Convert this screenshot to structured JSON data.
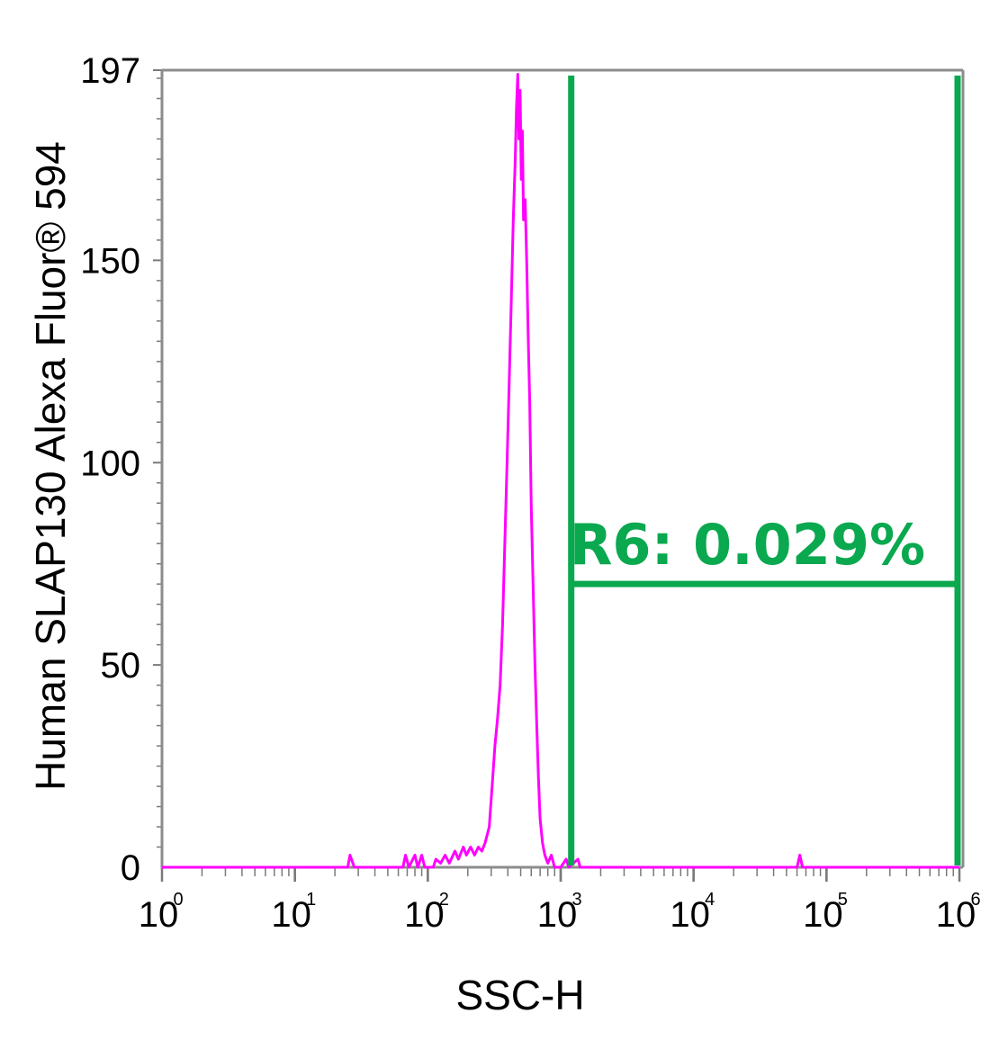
{
  "chart_data": {
    "type": "histogram",
    "xlabel": "SSC-H",
    "ylabel": "Human SLAP130 Alexa Fluor® 594",
    "x_scale": "log",
    "xlim": [
      1,
      1000000
    ],
    "ylim": [
      0,
      197
    ],
    "y_ticks": [
      "0",
      "50",
      "100",
      "150",
      "197"
    ],
    "x_ticks": [
      {
        "base": "10",
        "exp": "0"
      },
      {
        "base": "10",
        "exp": "1"
      },
      {
        "base": "10",
        "exp": "2"
      },
      {
        "base": "10",
        "exp": "3"
      },
      {
        "base": "10",
        "exp": "4"
      },
      {
        "base": "10",
        "exp": "5"
      },
      {
        "base": "10",
        "exp": "6"
      }
    ],
    "series": [
      {
        "color": "#ff00ff",
        "points": [
          [
            1,
            0
          ],
          [
            25,
            0
          ],
          [
            26,
            3
          ],
          [
            28,
            0
          ],
          [
            65,
            0
          ],
          [
            68,
            3
          ],
          [
            72,
            0
          ],
          [
            80,
            3
          ],
          [
            84,
            0
          ],
          [
            90,
            3
          ],
          [
            95,
            0
          ],
          [
            110,
            0
          ],
          [
            115,
            2
          ],
          [
            125,
            1
          ],
          [
            135,
            3
          ],
          [
            145,
            1
          ],
          [
            160,
            4
          ],
          [
            170,
            2
          ],
          [
            185,
            5
          ],
          [
            195,
            3
          ],
          [
            210,
            5
          ],
          [
            225,
            3
          ],
          [
            240,
            5
          ],
          [
            255,
            4
          ],
          [
            270,
            6
          ],
          [
            290,
            10
          ],
          [
            305,
            20
          ],
          [
            320,
            30
          ],
          [
            335,
            37
          ],
          [
            350,
            45
          ],
          [
            365,
            60
          ],
          [
            380,
            80
          ],
          [
            395,
            100
          ],
          [
            410,
            120
          ],
          [
            425,
            140
          ],
          [
            440,
            160
          ],
          [
            455,
            175
          ],
          [
            465,
            188
          ],
          [
            475,
            196
          ],
          [
            485,
            180
          ],
          [
            495,
            192
          ],
          [
            505,
            170
          ],
          [
            515,
            182
          ],
          [
            525,
            160
          ],
          [
            540,
            165
          ],
          [
            555,
            150
          ],
          [
            570,
            130
          ],
          [
            585,
            115
          ],
          [
            600,
            90
          ],
          [
            620,
            70
          ],
          [
            640,
            50
          ],
          [
            660,
            35
          ],
          [
            680,
            22
          ],
          [
            700,
            12
          ],
          [
            730,
            6
          ],
          [
            760,
            3
          ],
          [
            800,
            1
          ],
          [
            850,
            3
          ],
          [
            900,
            0
          ],
          [
            1000,
            0
          ],
          [
            1100,
            2
          ],
          [
            1150,
            0
          ],
          [
            1350,
            2
          ],
          [
            1400,
            0
          ],
          [
            60000,
            0
          ],
          [
            63000,
            3
          ],
          [
            66000,
            0
          ],
          [
            1000000,
            0
          ]
        ]
      }
    ],
    "gate": {
      "name": "R6",
      "label": "R6: 0.029%",
      "x_start": 1200,
      "x_end": 1000000,
      "y_level": 70,
      "color": "#0aa84f"
    }
  }
}
